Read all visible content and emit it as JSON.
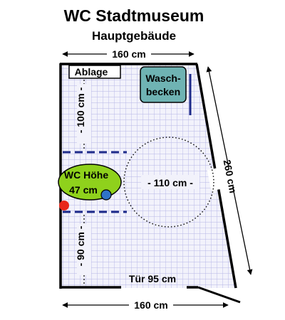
{
  "title": "WC Stadtmuseum",
  "subtitle": "Hauptgebäude",
  "dimensions": {
    "top_width": "160 cm",
    "bottom_width": "160 cm",
    "side_diagonal": "260 cm",
    "upper_left_height": "- 100 cm -",
    "lower_left_height": "- 90 cm -",
    "turning_circle": "- 110 cm -",
    "door": "Tür 95 cm"
  },
  "labels": {
    "shelf": "Ablage",
    "sink_line1": "Wasch-",
    "sink_line2": "becken",
    "wc_line1": "WC Höhe",
    "wc_line2": "47 cm"
  },
  "colors": {
    "grid": "#b5b5e6",
    "floor": "#f2f2fb",
    "wall": "#000000",
    "grab_rail": "#1d2a8a",
    "sink_fill": "#6fb3b3",
    "wc_fill": "#8fd11c",
    "flush_button": "#2f73c9",
    "alarm_button": "#e8271a"
  }
}
